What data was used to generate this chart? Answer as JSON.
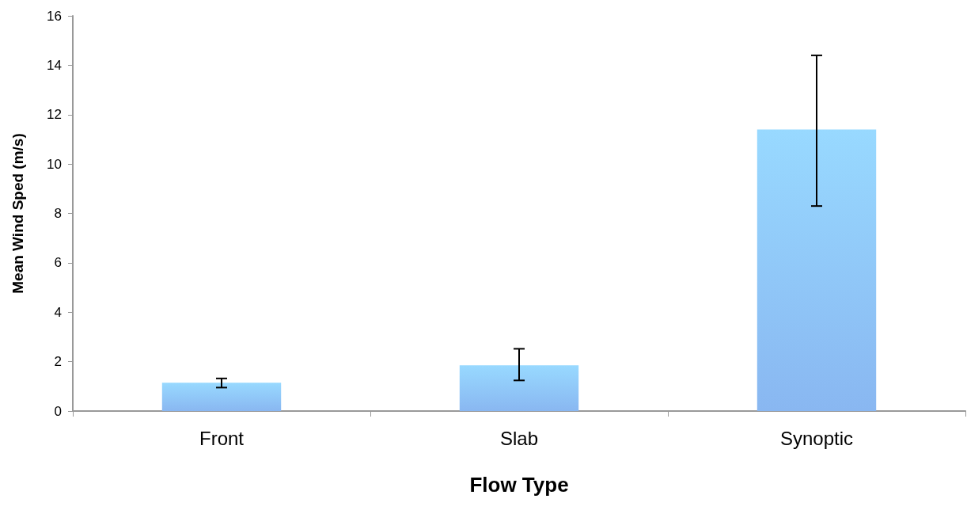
{
  "chart_data": {
    "type": "bar",
    "xlabel": "Flow Type",
    "ylabel": "Mean Wind Sped (m/s)",
    "categories": [
      "Front",
      "Slab",
      "Synoptic"
    ],
    "values": [
      1.15,
      1.85,
      11.4
    ],
    "errors": [
      [
        0.95,
        1.32
      ],
      [
        1.24,
        2.52
      ],
      [
        8.3,
        14.4
      ]
    ],
    "color": "#7aaef0",
    "ylim": [
      0,
      16
    ],
    "yticks": [
      0,
      2,
      4,
      6,
      8,
      10,
      12,
      14,
      16
    ],
    "grid": false
  }
}
